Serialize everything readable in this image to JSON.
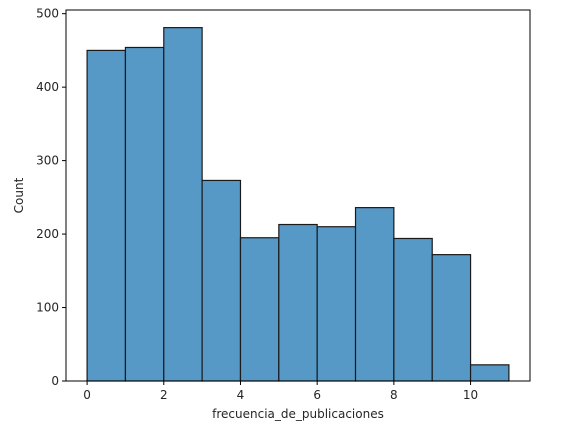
{
  "chart_data": {
    "type": "bar",
    "title": "",
    "xlabel": "frecuencia_de_publicaciones",
    "ylabel": "Count",
    "bins": [
      {
        "x0": 0,
        "x1": 1,
        "count": 450
      },
      {
        "x0": 1,
        "x1": 2,
        "count": 454
      },
      {
        "x0": 2,
        "x1": 3,
        "count": 481
      },
      {
        "x0": 3,
        "x1": 4,
        "count": 273
      },
      {
        "x0": 4,
        "x1": 5,
        "count": 195
      },
      {
        "x0": 5,
        "x1": 6,
        "count": 213
      },
      {
        "x0": 6,
        "x1": 7,
        "count": 210
      },
      {
        "x0": 7,
        "x1": 8,
        "count": 236
      },
      {
        "x0": 8,
        "x1": 9,
        "count": 194
      },
      {
        "x0": 9,
        "x1": 10,
        "count": 172
      },
      {
        "x0": 10,
        "x1": 11,
        "count": 22
      }
    ],
    "xlim": [
      -0.55,
      11.55
    ],
    "ylim": [
      0,
      505
    ],
    "xticks": [
      0,
      2,
      4,
      6,
      8,
      10
    ],
    "yticks": [
      0,
      100,
      200,
      300,
      400,
      500
    ],
    "bar_color": "#5799c6",
    "edge_color": "#1a1a1a",
    "grid": false
  }
}
